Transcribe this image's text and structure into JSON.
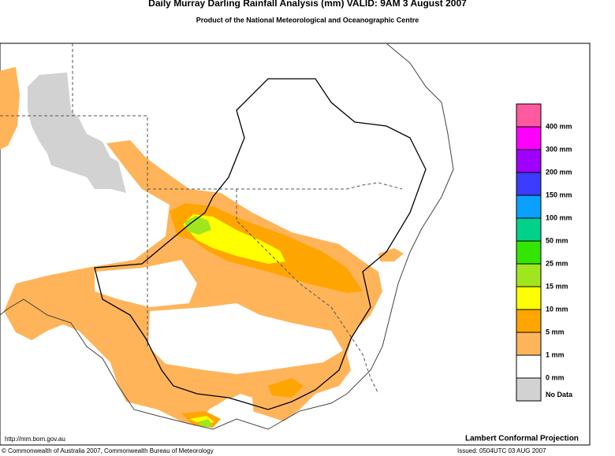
{
  "header": {
    "title": "Daily Murray Darling Rainfall Analysis (mm)  VALID: 9AM  3 August 2007",
    "subtitle": "Product of the National Meteorological and Oceanographic Centre"
  },
  "legend": {
    "colors": [
      "#ff5aa0",
      "#ff00ff",
      "#a000ff",
      "#3c3cff",
      "#0aa0ff",
      "#00d28c",
      "#32e600",
      "#a0e61e",
      "#ffff00",
      "#ffa500",
      "#ffb45a",
      "#ffffff",
      "#d2d2d2"
    ],
    "labels": [
      "400 mm",
      "300 mm",
      "200 mm",
      "150 mm",
      "100 mm",
      "50 mm",
      "25 mm",
      "15 mm",
      "10 mm",
      "5 mm",
      "1 mm",
      "0 mm",
      "No Data"
    ]
  },
  "footer": {
    "url": "http://mm.bom.gov.au",
    "projection": "Lambert Conformal Projection",
    "copyright": "© Commonwealth of Australia 2007, Commonwealth Bureau of Meteorology",
    "issued": "Issued: 0504UTC 03 AUG 2007"
  }
}
